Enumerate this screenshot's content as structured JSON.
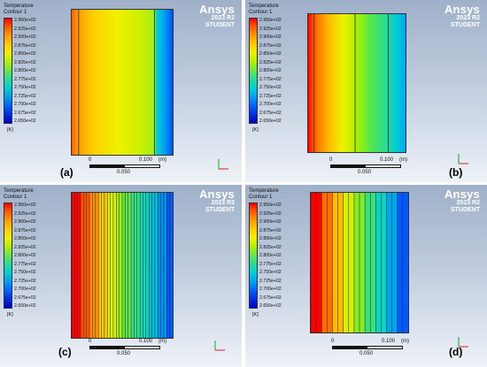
{
  "legend": {
    "title": "Temperature",
    "subtitle": "Contour 1",
    "ticks": [
      "2.950e+02",
      "2.925e+02",
      "2.900e+02",
      "2.875e+02",
      "2.850e+02",
      "2.825e+02",
      "2.800e+02",
      "2.775e+02",
      "2.750e+02",
      "2.725e+02",
      "2.700e+02",
      "2.675e+02",
      "2.650e+02"
    ],
    "unit": "[K]"
  },
  "logo": {
    "name": "Ansys",
    "version": "2023 R2",
    "edition": "STUDENT"
  },
  "scale": {
    "start": "0",
    "end": "0.100",
    "mid": "0.050",
    "unit": "(m)"
  },
  "axis": {
    "x": "X",
    "y": "Y"
  },
  "panels": [
    {
      "label": "(a)"
    },
    {
      "label": "(b)"
    },
    {
      "label": "(c)"
    },
    {
      "label": "(d)"
    }
  ]
}
